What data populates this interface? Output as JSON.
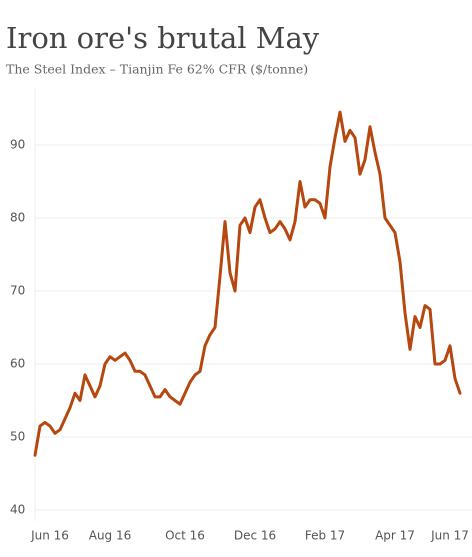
{
  "chart_data": {
    "type": "line",
    "title": "Iron ore's brutal May",
    "subtitle": "The Steel Index – Tianjin Fe 62% CFR ($/tonne)",
    "categories": [
      null,
      null,
      null,
      "Jun 16",
      null,
      null,
      null,
      null,
      null,
      null,
      null,
      null,
      null,
      null,
      null,
      "Aug 16",
      null,
      null,
      null,
      null,
      null,
      null,
      null,
      null,
      null,
      null,
      null,
      null,
      null,
      null,
      "Oct 16",
      null,
      null,
      null,
      null,
      null,
      null,
      null,
      null,
      null,
      null,
      null,
      null,
      null,
      "Dec 16",
      null,
      null,
      null,
      null,
      null,
      null,
      null,
      null,
      null,
      null,
      null,
      null,
      null,
      "Feb 17",
      null,
      null,
      null,
      null,
      null,
      null,
      null,
      null,
      null,
      null,
      null,
      null,
      null,
      "Apr 17",
      null,
      null,
      null,
      null,
      null,
      null,
      null,
      null,
      null,
      null,
      "Jun 17",
      null,
      null
    ],
    "values": [
      47.5,
      51.5,
      52,
      51.5,
      50.5,
      51,
      52.5,
      54,
      56,
      55,
      58.5,
      57,
      55.5,
      57,
      60,
      61,
      60.5,
      61,
      61.5,
      60.5,
      59,
      59,
      58.5,
      57,
      55.5,
      55.5,
      56.5,
      55.5,
      55,
      54.5,
      56,
      57.5,
      58.5,
      59,
      62.5,
      64,
      65,
      72,
      79.5,
      72.5,
      70,
      79,
      80,
      78,
      81.5,
      82.5,
      80,
      78,
      78.5,
      79.5,
      78.5,
      77,
      79.5,
      85,
      81.5,
      82.5,
      82.5,
      82,
      80,
      87,
      91,
      94.5,
      90.5,
      92,
      91,
      86,
      88,
      92.5,
      89,
      86,
      80,
      79,
      78,
      74,
      67,
      62,
      66.5,
      65,
      68,
      67.5,
      60,
      60,
      60.5,
      62.5,
      58,
      56
    ],
    "color": "#b5470f",
    "ylim": [
      38.5,
      97.5
    ],
    "yticks": [
      40,
      50,
      60,
      70,
      80,
      90
    ],
    "grid": true
  }
}
